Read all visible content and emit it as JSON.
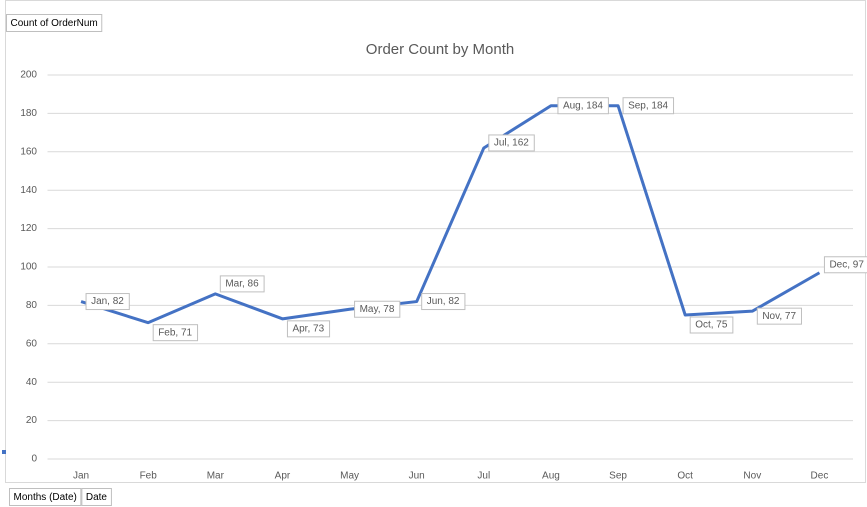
{
  "chart_data": {
    "type": "line",
    "title": "Order Count by Month",
    "value_field_button": "Count of OrderNum",
    "axis_field_buttons": [
      "Months (Date)",
      "Date"
    ],
    "categories": [
      "Jan",
      "Feb",
      "Mar",
      "Apr",
      "May",
      "Jun",
      "Jul",
      "Aug",
      "Sep",
      "Oct",
      "Nov",
      "Dec"
    ],
    "series": [
      {
        "name": "Total",
        "color": "#4472c4",
        "values": [
          82,
          71,
          86,
          73,
          78,
          82,
          162,
          184,
          184,
          75,
          77,
          97
        ],
        "value_labels": [
          "Jan, 82",
          "Feb, 71",
          "Mar, 86",
          "Apr, 73",
          "May, 78",
          "Jun, 82",
          "Jul, 162",
          "Aug, 184",
          "Sep, 184",
          "Oct, 75",
          "Nov, 77",
          "Dec, 97"
        ]
      }
    ],
    "ylim": [
      0,
      200
    ],
    "yticks": [
      0,
      20,
      40,
      60,
      80,
      100,
      120,
      140,
      160,
      180,
      200
    ],
    "grid": true
  }
}
